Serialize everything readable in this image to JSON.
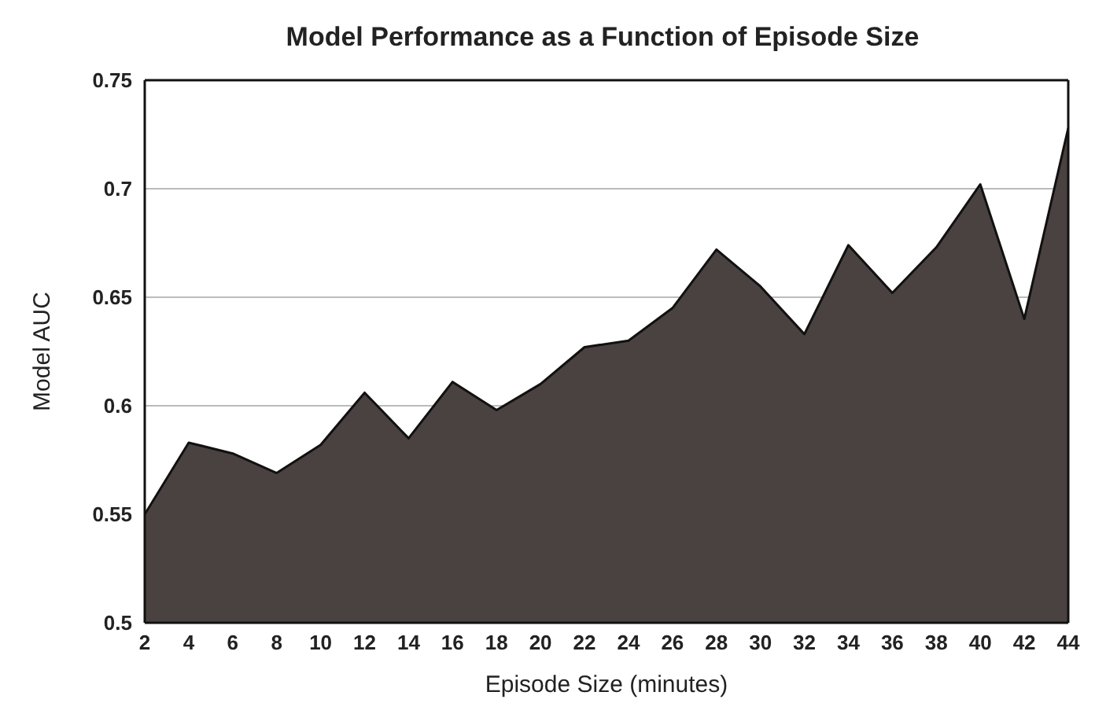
{
  "chart_data": {
    "type": "area",
    "title": "Model Performance as a Function of Episode Size",
    "xlabel": "Episode Size (minutes)",
    "ylabel": "Model AUC",
    "x": [
      2,
      4,
      6,
      8,
      10,
      12,
      14,
      16,
      18,
      20,
      22,
      24,
      26,
      28,
      30,
      32,
      34,
      36,
      38,
      40,
      42,
      44
    ],
    "series": [
      {
        "color": "#4a4240",
        "values": [
          0.55,
          0.583,
          0.578,
          0.569,
          0.582,
          0.606,
          0.585,
          0.611,
          0.598,
          0.61,
          0.627,
          0.63,
          0.645,
          0.672,
          0.655,
          0.633,
          0.674,
          0.652,
          0.673,
          0.702,
          0.64,
          0.728
        ]
      }
    ],
    "xlim": [
      2,
      44
    ],
    "xticks": [
      2,
      4,
      6,
      8,
      10,
      12,
      14,
      16,
      18,
      20,
      22,
      24,
      26,
      28,
      30,
      32,
      34,
      36,
      38,
      40,
      42,
      44
    ],
    "ylim": [
      0.5,
      0.75
    ],
    "yticks": [
      0.5,
      0.55,
      0.6,
      0.65,
      0.7,
      0.75
    ],
    "grid": "y",
    "legend": false
  }
}
